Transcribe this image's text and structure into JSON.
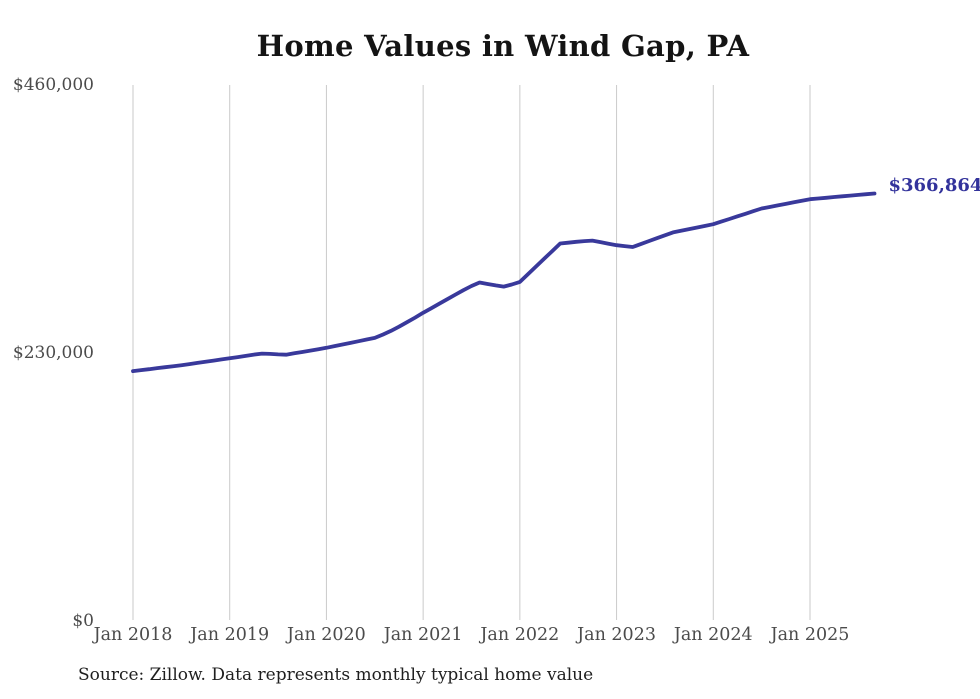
{
  "title": "Home Values in Wind Gap, PA",
  "source_note": "Source: Zillow. Data represents monthly typical home value",
  "end_label": "$366,864",
  "colors": {
    "background": "#ffffff",
    "line": "#39399b",
    "end_label": "#32329b",
    "grid": "#cacaca",
    "tick_text": "#4b4b4b",
    "title_text": "#141414",
    "source_text": "#1f1f1f"
  },
  "chart_data": {
    "type": "line",
    "title": "Home Values in Wind Gap, PA",
    "xlabel": "",
    "ylabel": "",
    "ylim": [
      0,
      460000
    ],
    "grid": "vertical-only",
    "legend": "none",
    "start_month": "2018-01",
    "end_month": "2025-09",
    "frequency": "monthly",
    "y_ticks": [
      {
        "value": 0,
        "label": "$0"
      },
      {
        "value": 230000,
        "label": "$230,000"
      },
      {
        "value": 460000,
        "label": "$460,000"
      }
    ],
    "x_ticks": [
      {
        "month_index": 0,
        "label": "Jan 2018"
      },
      {
        "month_index": 12,
        "label": "Jan 2019"
      },
      {
        "month_index": 24,
        "label": "Jan 2020"
      },
      {
        "month_index": 36,
        "label": "Jan 2021"
      },
      {
        "month_index": 48,
        "label": "Jan 2022"
      },
      {
        "month_index": 60,
        "label": "Jan 2023"
      },
      {
        "month_index": 72,
        "label": "Jan 2024"
      },
      {
        "month_index": 84,
        "label": "Jan 2025"
      }
    ],
    "series": [
      {
        "name": "Typical home value",
        "final_value": 366864,
        "final_value_label": "$366,864",
        "values": [
          214500,
          215300,
          216100,
          217000,
          217800,
          218700,
          219500,
          220500,
          221500,
          222500,
          223500,
          224500,
          225500,
          226500,
          227500,
          228600,
          229500,
          229200,
          228800,
          228500,
          229700,
          230900,
          232100,
          233300,
          234500,
          235900,
          237300,
          238700,
          240100,
          241600,
          243000,
          245800,
          249000,
          252600,
          256400,
          260400,
          264500,
          268400,
          272300,
          276200,
          280100,
          283900,
          287500,
          290500,
          289200,
          288000,
          287000,
          288800,
          291000,
          297600,
          304200,
          310800,
          317400,
          324000,
          324700,
          325400,
          326000,
          326500,
          325200,
          323800,
          322500,
          321700,
          321000,
          323500,
          326000,
          328500,
          331000,
          333500,
          334900,
          336300,
          337700,
          339100,
          340500,
          342800,
          345000,
          347300,
          349500,
          351800,
          354000,
          355300,
          356700,
          358000,
          359300,
          360700,
          362000,
          362600,
          363200,
          363900,
          364500,
          365100,
          365700,
          366300,
          366864
        ]
      }
    ]
  }
}
